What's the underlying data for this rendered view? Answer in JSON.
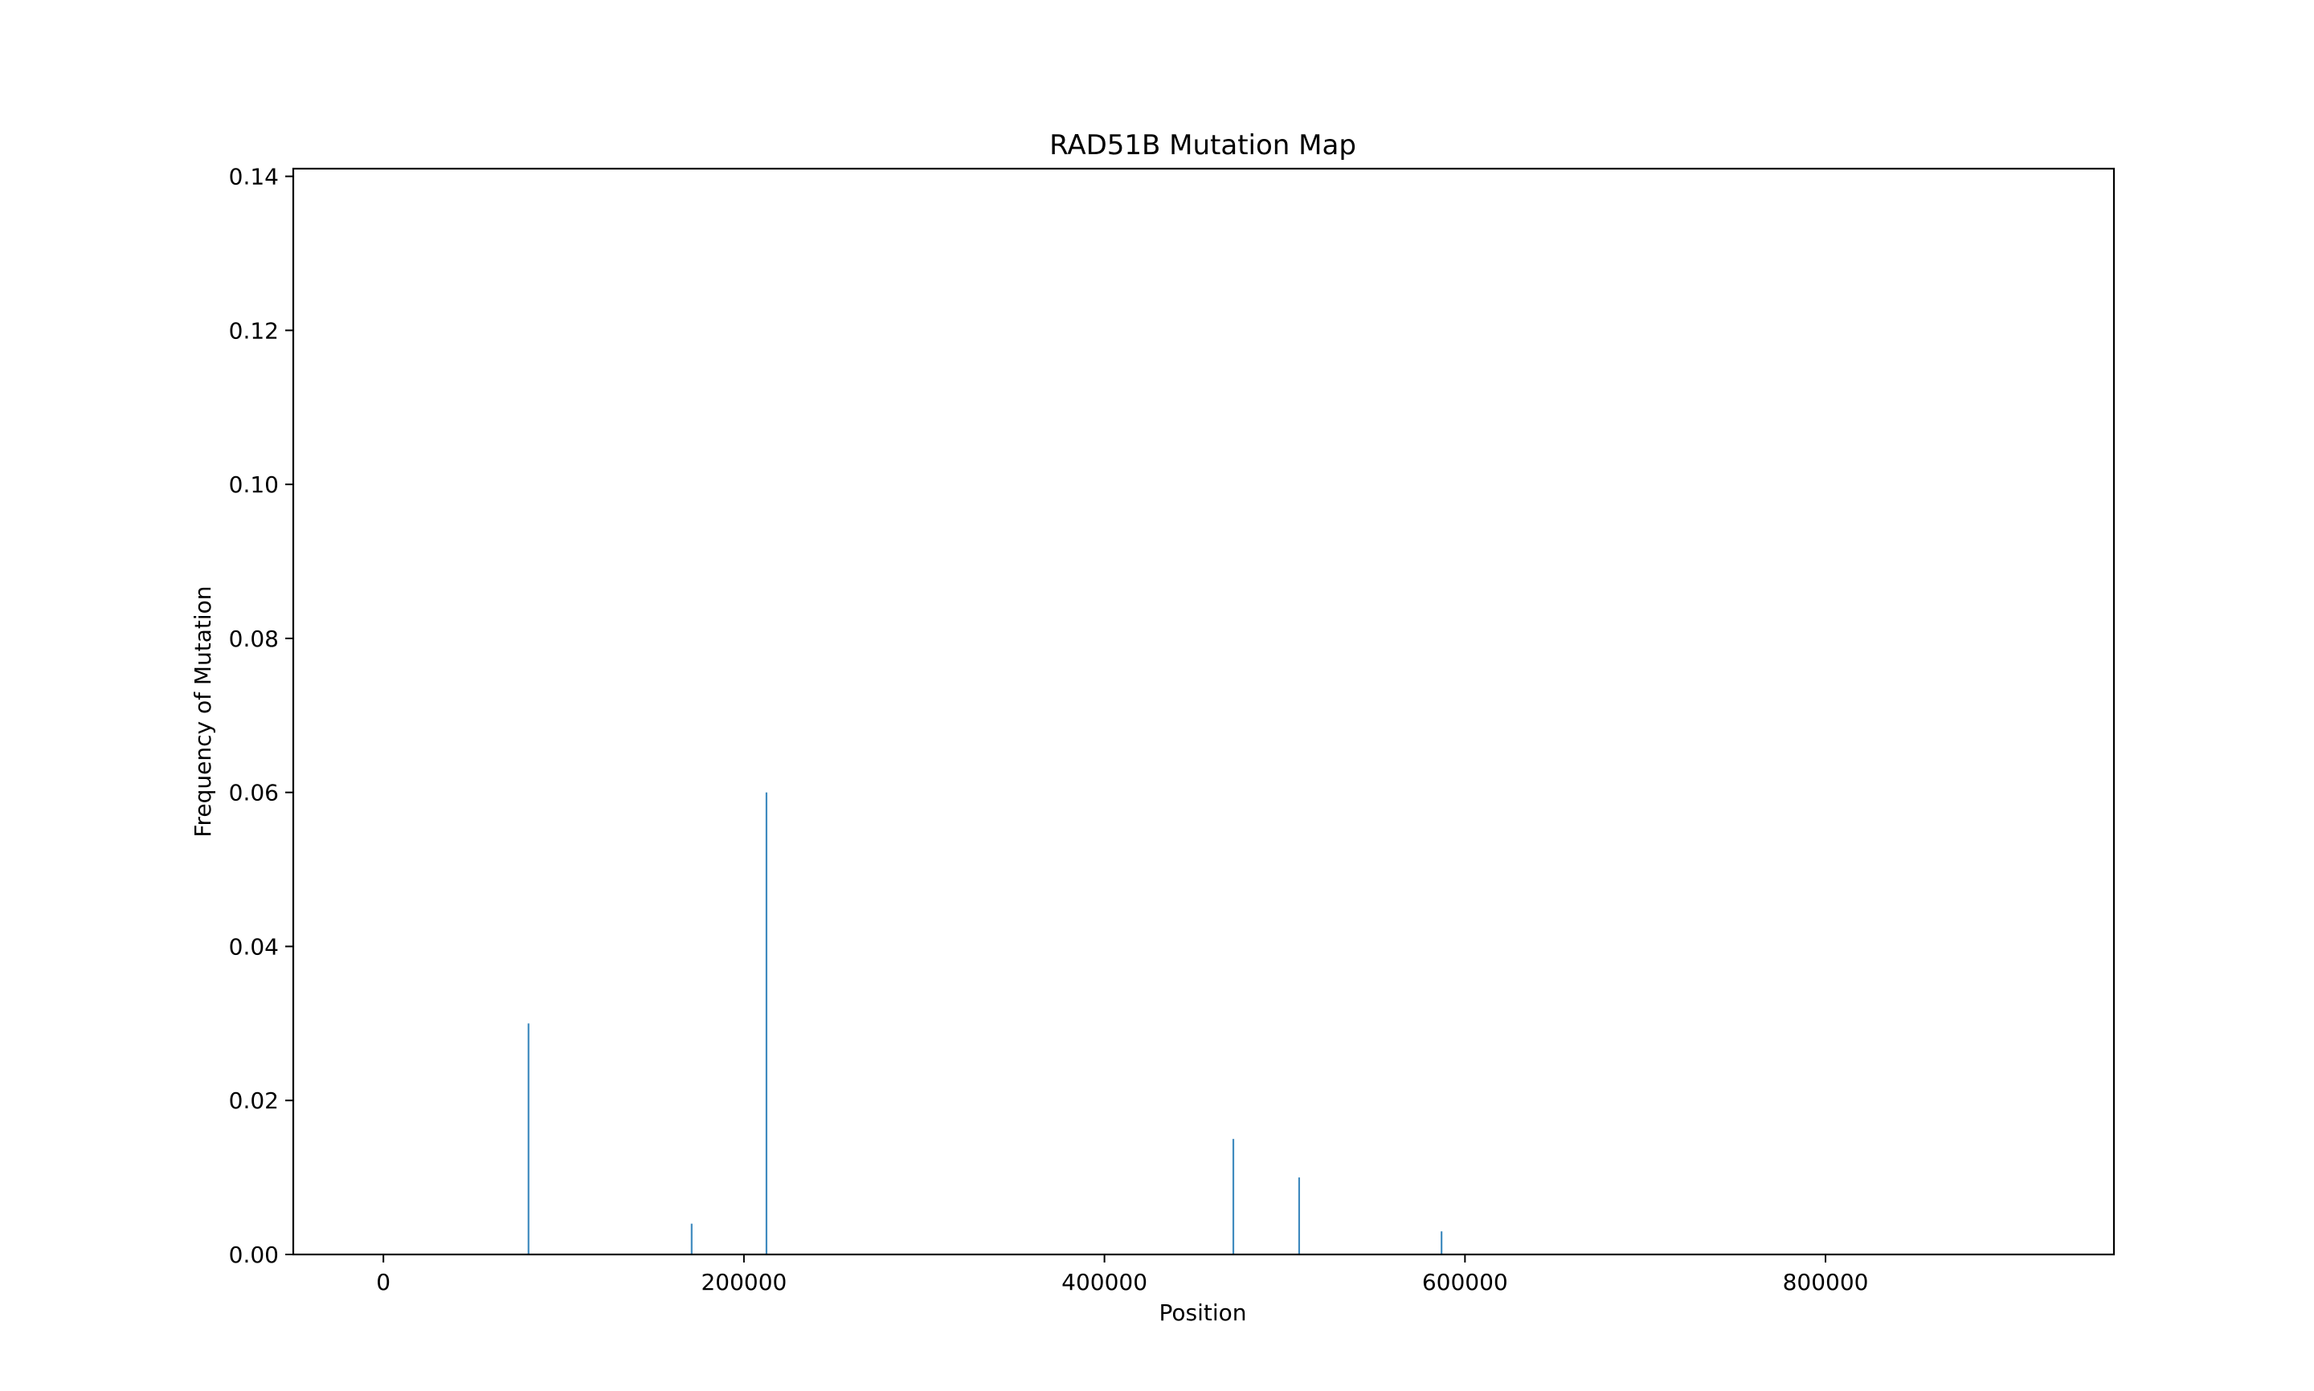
{
  "chart_data": {
    "type": "bar",
    "title": "RAD51B Mutation Map",
    "xlabel": "Position",
    "ylabel": "Frequency of Mutation",
    "xlim": [
      -50000,
      960000
    ],
    "ylim": [
      0,
      0.141
    ],
    "xticks": [
      0,
      200000,
      400000,
      600000,
      800000
    ],
    "yticks": [
      0.0,
      0.02,
      0.04,
      0.06,
      0.08,
      0.1,
      0.12,
      0.14
    ],
    "ytick_decimals": 2,
    "grid": false,
    "legend": "none",
    "bar_color": "#1f77b4",
    "series": [
      {
        "x": [
          80500,
          171000,
          212500,
          471500,
          508000,
          587000
        ],
        "values": [
          0.03,
          0.004,
          0.06,
          0.015,
          0.01,
          0.003
        ]
      }
    ]
  }
}
